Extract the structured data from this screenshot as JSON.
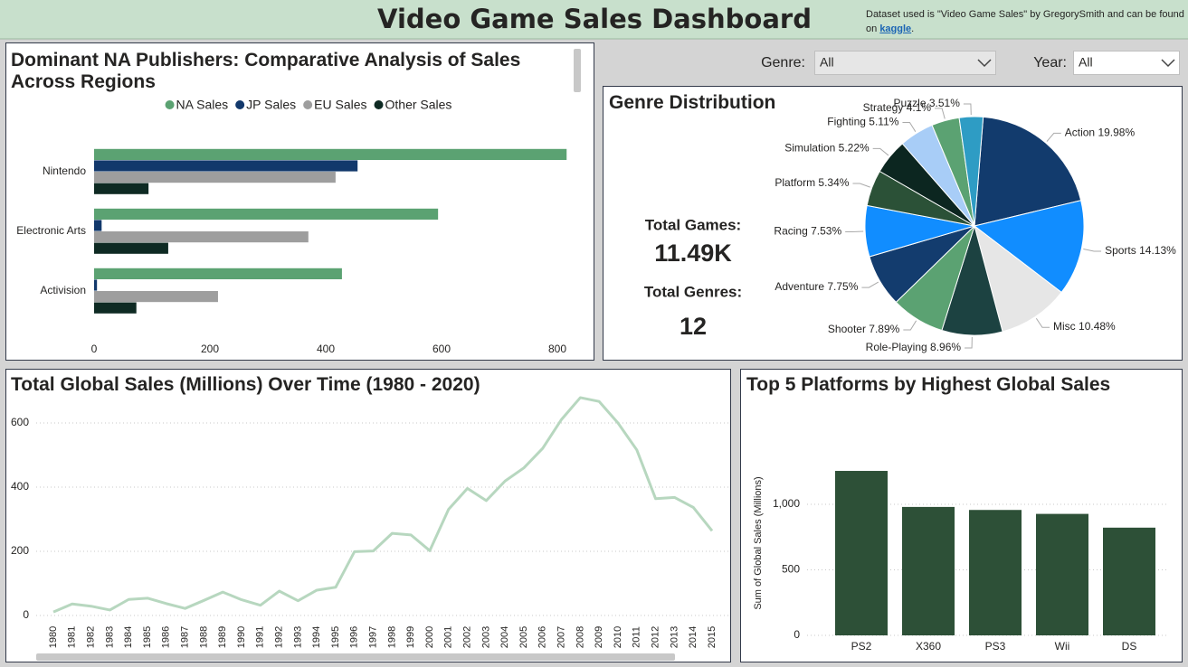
{
  "header": {
    "title": "Video Game Sales Dashboard",
    "note": {
      "text": "Dataset used is \"Video Game Sales\" by GregorySmith and can be found on",
      "link": "kaggle",
      "end": "."
    }
  },
  "filters": [
    {
      "label": "Genre:",
      "value": "All"
    },
    {
      "label": "Year:",
      "value": "All"
    }
  ],
  "kpis": [
    {
      "label": "Total Games:",
      "value": "11.49K"
    },
    {
      "label": "Total Genres:",
      "value": "12"
    }
  ],
  "chart_data": [
    {
      "type": "barh",
      "title": "Dominant NA Publishers: Comparative Analysis of Sales Across Regions",
      "categories": [
        "Nintendo",
        "Electronic Arts",
        "Activision"
      ],
      "series": [
        {
          "name": "NA Sales",
          "color": "#5ba272",
          "values": [
            816,
            594,
            428
          ]
        },
        {
          "name": "JP Sales",
          "color": "#12386b",
          "values": [
            455,
            13,
            5
          ]
        },
        {
          "name": "EU Sales",
          "color": "#9e9e9e",
          "values": [
            417,
            370,
            214
          ]
        },
        {
          "name": "Other Sales",
          "color": "#0e2a23",
          "values": [
            94,
            128,
            73
          ]
        }
      ],
      "xlim": [
        0,
        840
      ],
      "xticks": [
        0,
        200,
        400,
        600,
        800
      ],
      "legend": "top",
      "grid": false
    },
    {
      "type": "pie",
      "title": "Genre Distribution",
      "categories": [
        "Action",
        "Sports",
        "Misc",
        "Role-Playing",
        "Shooter",
        "Adventure",
        "Racing",
        "Platform",
        "Simulation",
        "Fighting",
        "Strategy",
        "Puzzle"
      ],
      "values": [
        19.98,
        14.13,
        10.48,
        8.96,
        7.89,
        7.75,
        7.53,
        5.34,
        5.22,
        5.11,
        4.1,
        3.51
      ],
      "value_labels": [
        "19.98%",
        "14.13%",
        "10.48%",
        "8.96%",
        "7.89%",
        "7.75%",
        "7.53%",
        "5.34%",
        "5.22%",
        "5.11%",
        "4.1%",
        "3.51%"
      ],
      "colors": [
        "#123b6d",
        "#118dff",
        "#e6e6e6",
        "#1c4241",
        "#5ba272",
        "#133c6e",
        "#118dff",
        "#2b5137",
        "#0c2620",
        "#a8cdf7",
        "#5ba272",
        "#2e9cc4"
      ]
    },
    {
      "type": "line",
      "title": "Total Global Sales (Millions) Over Time (1980 - 2020)",
      "x": [
        1980,
        1981,
        1982,
        1983,
        1984,
        1985,
        1986,
        1987,
        1988,
        1989,
        1990,
        1991,
        1992,
        1993,
        1994,
        1995,
        1996,
        1997,
        1998,
        1999,
        2000,
        2001,
        2002,
        2003,
        2004,
        2005,
        2006,
        2007,
        2008,
        2009,
        2010,
        2011,
        2012,
        2013,
        2014,
        2015
      ],
      "values": [
        11,
        36,
        29,
        17,
        50,
        54,
        37,
        22,
        47,
        73,
        49,
        32,
        76,
        46,
        79,
        88,
        199,
        201,
        256,
        251,
        202,
        331,
        396,
        358,
        419,
        460,
        521,
        611,
        679,
        667,
        600,
        516,
        364,
        368,
        337,
        264
      ],
      "color": "#b7d7bf",
      "xlim": [
        1980,
        2015
      ],
      "ylim": [
        0,
        720
      ],
      "yticks": [
        0,
        200,
        400,
        600
      ],
      "grid": true
    },
    {
      "type": "bar",
      "title": "Top 5 Platforms by Highest Global Sales",
      "y_label": "Sum of Global Sales (Millions)",
      "categories": [
        "PS2",
        "X360",
        "PS3",
        "Wii",
        "DS"
      ],
      "values": [
        1255,
        980,
        957,
        927,
        822
      ],
      "color": "#2d5037",
      "ylim": [
        0,
        1350
      ],
      "yticks": [
        0,
        500,
        {
          "value": 1000,
          "label": "1,000"
        }
      ],
      "grid": true
    }
  ]
}
